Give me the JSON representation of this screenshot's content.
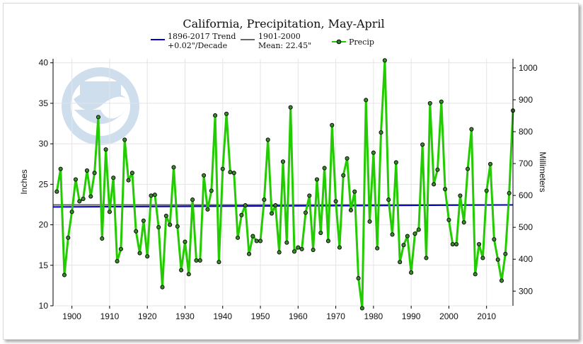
{
  "chart_data": {
    "type": "line",
    "title": "California, Precipitation, May-April",
    "ylabel": "Inches",
    "y2label": "Millimeters",
    "xlim": [
      1895,
      2017
    ],
    "ylim": [
      10,
      40.5
    ],
    "x_ticks": [
      1900,
      1910,
      1920,
      1930,
      1940,
      1950,
      1960,
      1970,
      1980,
      1990,
      2000,
      2010
    ],
    "y_ticks": [
      10,
      15,
      20,
      25,
      30,
      35,
      40
    ],
    "y2_ticks": [
      300,
      400,
      500,
      600,
      700,
      800,
      900,
      1000
    ],
    "grid": true,
    "legend_placement": "top-center",
    "legend": {
      "trend": [
        "1896-2017 Trend",
        "+0.02\"/Decade"
      ],
      "mean": [
        "1901-2000",
        "Mean: 22.45\""
      ],
      "precip": "Precip"
    },
    "colors": {
      "precip": "#22cc00",
      "trend": "#0000cc",
      "mean": "#666666"
    },
    "mean": {
      "x": [
        1895,
        2017
      ],
      "y": [
        22.45,
        22.45
      ]
    },
    "trend": {
      "x": [
        1895,
        2017
      ],
      "y": [
        22.2,
        22.45
      ]
    },
    "series": [
      {
        "x": [
          1896,
          1897,
          1898,
          1899,
          1900,
          1901,
          1902,
          1903,
          1904,
          1905,
          1906,
          1907,
          1908,
          1909,
          1910,
          1911,
          1912,
          1913,
          1914,
          1915,
          1916,
          1917,
          1918,
          1919,
          1920,
          1921,
          1922,
          1923,
          1924,
          1925,
          1926,
          1927,
          1928,
          1929,
          1930,
          1931,
          1932,
          1933,
          1934,
          1935,
          1936,
          1937,
          1938,
          1939,
          1940,
          1941,
          1942,
          1943,
          1944,
          1945,
          1946,
          1947,
          1948,
          1949,
          1950,
          1951,
          1952,
          1953,
          1954,
          1955,
          1956,
          1957,
          1958,
          1959,
          1960,
          1961,
          1962,
          1963,
          1964,
          1965,
          1966,
          1967,
          1968,
          1969,
          1970,
          1971,
          1972,
          1973,
          1974,
          1975,
          1976,
          1977,
          1978,
          1979,
          1980,
          1981,
          1982,
          1983,
          1984,
          1985,
          1986,
          1987,
          1988,
          1989,
          1990,
          1991,
          1992,
          1993,
          1994,
          1995,
          1996,
          1997,
          1998,
          1999,
          2000,
          2001,
          2002,
          2003,
          2004,
          2005,
          2006,
          2007,
          2008,
          2009,
          2010,
          2011,
          2012,
          2013,
          2014,
          2015,
          2016,
          2017
        ],
        "values": [
          24.1,
          26.9,
          13.8,
          18.4,
          21.6,
          25.6,
          22.9,
          23.2,
          26.7,
          23.5,
          26.4,
          33.3,
          18.3,
          29.3,
          21.6,
          25.8,
          15.5,
          17.0,
          30.5,
          25.5,
          26.4,
          19.2,
          16.5,
          20.5,
          16.1,
          23.6,
          23.7,
          19.7,
          12.3,
          21.1,
          20.0,
          27.1,
          19.8,
          14.4,
          17.9,
          13.9,
          23.1,
          15.6,
          15.6,
          26.1,
          21.9,
          24.2,
          33.5,
          15.4,
          26.9,
          33.7,
          26.5,
          26.4,
          18.4,
          21.2,
          22.4,
          16.4,
          18.6,
          18.0,
          18.0,
          23.1,
          30.5,
          21.4,
          22.4,
          16.6,
          27.8,
          17.8,
          34.5,
          16.7,
          17.2,
          17.0,
          21.5,
          23.6,
          16.9,
          25.6,
          19.0,
          27.0,
          18.0,
          32.3,
          22.9,
          17.2,
          26.1,
          28.2,
          21.8,
          24.1,
          13.4,
          9.7,
          35.4,
          20.4,
          28.9,
          17.1,
          31.4,
          40.3,
          23.1,
          18.8,
          27.7,
          15.4,
          17.5,
          18.6,
          14.1,
          18.9,
          19.4,
          29.9,
          15.9,
          35.0,
          25.0,
          26.8,
          35.2,
          24.4,
          20.6,
          17.6,
          17.6,
          23.6,
          20.3,
          26.9,
          31.8,
          13.9,
          17.6,
          15.9,
          24.2,
          27.5,
          18.2,
          15.7,
          13.1,
          16.4,
          23.9,
          34.1
        ]
      }
    ]
  }
}
